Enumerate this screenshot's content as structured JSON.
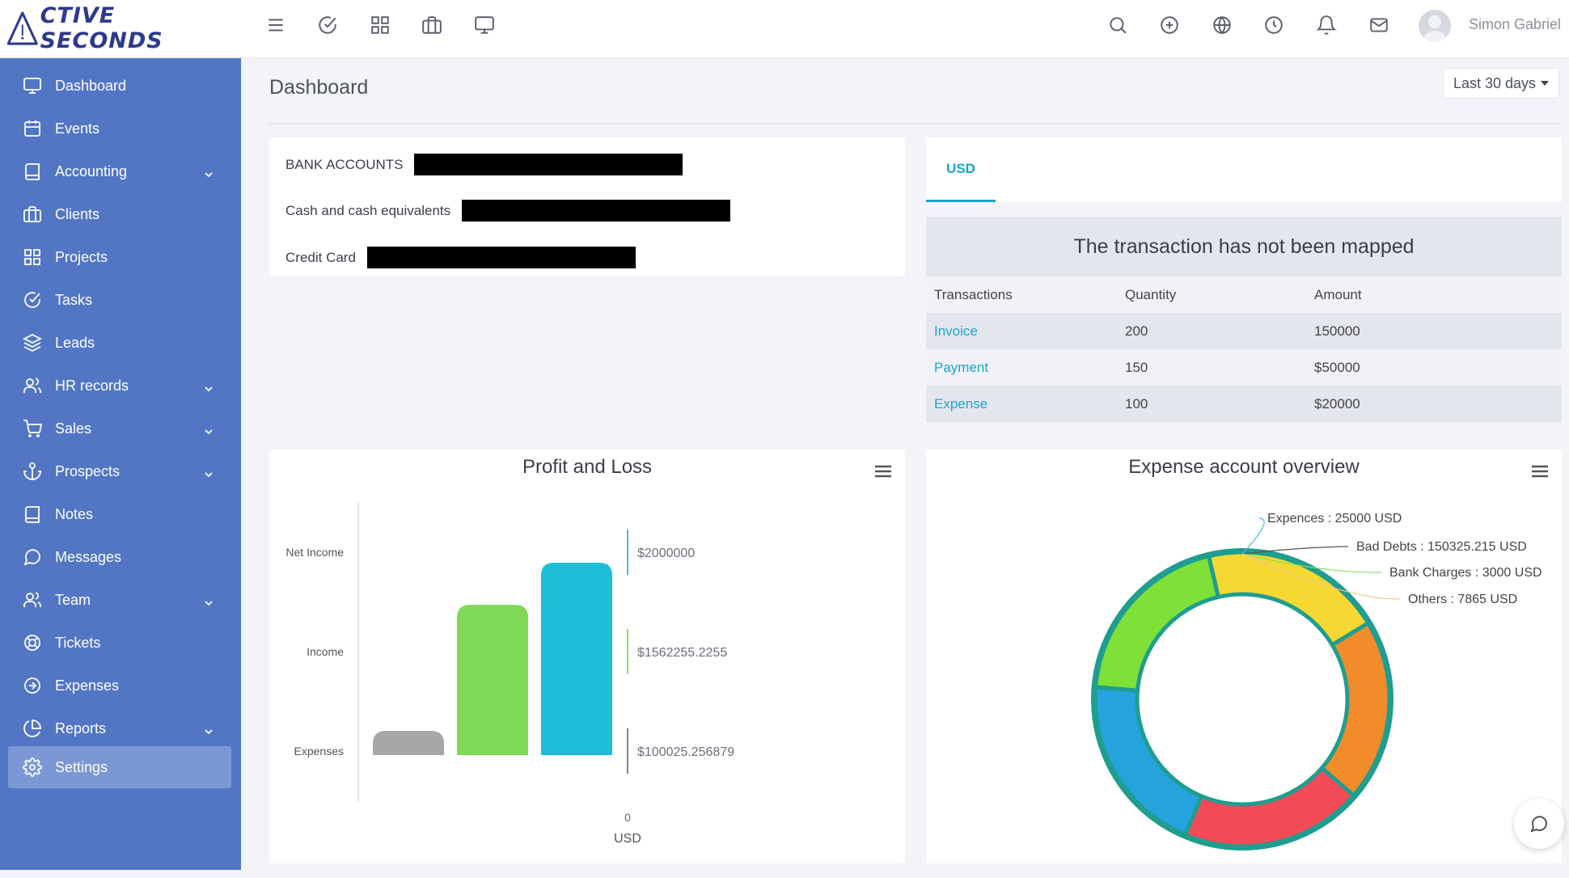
{
  "app": {
    "logo_text": "CTIVE SECONDS",
    "user_name": "Simon Gabriel"
  },
  "topbar": {
    "left_icons": [
      "menu-icon",
      "check-circle-icon",
      "grid-icon",
      "briefcase-icon",
      "monitor-icon"
    ],
    "right_icons": [
      "search-icon",
      "plus-circle-icon",
      "globe-icon",
      "clock-icon",
      "bell-icon",
      "mail-icon"
    ]
  },
  "sidebar": {
    "items": [
      {
        "label": "Dashboard",
        "icon": "monitor-icon",
        "has_children": false
      },
      {
        "label": "Events",
        "icon": "calendar-icon",
        "has_children": false
      },
      {
        "label": "Accounting",
        "icon": "book-icon",
        "has_children": true
      },
      {
        "label": "Clients",
        "icon": "briefcase-icon",
        "has_children": false
      },
      {
        "label": "Projects",
        "icon": "grid-icon",
        "has_children": false
      },
      {
        "label": "Tasks",
        "icon": "check-circle-icon",
        "has_children": false
      },
      {
        "label": "Leads",
        "icon": "layers-icon",
        "has_children": false
      },
      {
        "label": "HR records",
        "icon": "users-icon",
        "has_children": true
      },
      {
        "label": "Sales",
        "icon": "cart-icon",
        "has_children": true
      },
      {
        "label": "Prospects",
        "icon": "anchor-icon",
        "has_children": true
      },
      {
        "label": "Notes",
        "icon": "book-icon",
        "has_children": false
      },
      {
        "label": "Messages",
        "icon": "chat-icon",
        "has_children": false
      },
      {
        "label": "Team",
        "icon": "users-icon",
        "has_children": true
      },
      {
        "label": "Tickets",
        "icon": "lifebuoy-icon",
        "has_children": false
      },
      {
        "label": "Expenses",
        "icon": "arrow-circle-icon",
        "has_children": false
      },
      {
        "label": "Reports",
        "icon": "pie-icon",
        "has_children": true
      },
      {
        "label": "Settings",
        "icon": "gear-icon",
        "has_children": false
      }
    ],
    "active_label": "Settings"
  },
  "main": {
    "title": "Dashboard",
    "date_range": "Last 30 days",
    "bank": {
      "rows": [
        "BANK ACCOUNTS",
        "Cash and cash equivalents",
        "Credit Card"
      ]
    },
    "usd_panel": {
      "tab": "USD",
      "message": "The transaction has not been mapped",
      "columns": [
        "Transactions",
        "Quantity",
        "Amount"
      ],
      "rows": [
        {
          "name": "Invoice",
          "quantity": "200",
          "amount": "150000"
        },
        {
          "name": "Payment",
          "quantity": "150",
          "amount": "$50000"
        },
        {
          "name": "Expense",
          "quantity": "100",
          "amount": "$20000"
        }
      ]
    }
  },
  "chart_data": [
    {
      "type": "bar",
      "title": "Profit and Loss",
      "categories": [
        "Expenses",
        "Income",
        "Net Income"
      ],
      "category_labels": [
        "Net Income",
        "Income",
        "Expenses"
      ],
      "values": [
        100025.256879,
        1562255.2255,
        2000000
      ],
      "value_labels": [
        "$2000000",
        "$1562255.2255",
        "$100025.256879"
      ],
      "colors": [
        "#a7a6a9",
        "#7fd957",
        "#1dbfd6"
      ],
      "xlabel": "USD",
      "axis_zero_label": "0"
    },
    {
      "type": "pie",
      "title": "Expense account overview",
      "slices": [
        {
          "name": "Expences",
          "value": 25000,
          "label": "Expences : 25000 USD",
          "color": "#f5d832"
        },
        {
          "name": "Bad Debts",
          "value": 150325.215,
          "label": "Bad Debts : 150325.215 USD",
          "color": "#f28c2a"
        },
        {
          "name": "Bank Charges",
          "value": 3000,
          "label": "Bank Charges : 3000 USD",
          "color": "#f24b57"
        },
        {
          "name": "Others",
          "value": 7865,
          "label": "Others : 7865 USD",
          "color": "#24a3dc"
        }
      ],
      "donut_sector_colors": [
        "#f5d832",
        "#f28c2a",
        "#f24b57",
        "#24a3dc",
        "#7fe038"
      ],
      "donut_sector_fractions": [
        0.2,
        0.2,
        0.2,
        0.2,
        0.2
      ],
      "ring_color": "#1f9d8f"
    }
  ]
}
